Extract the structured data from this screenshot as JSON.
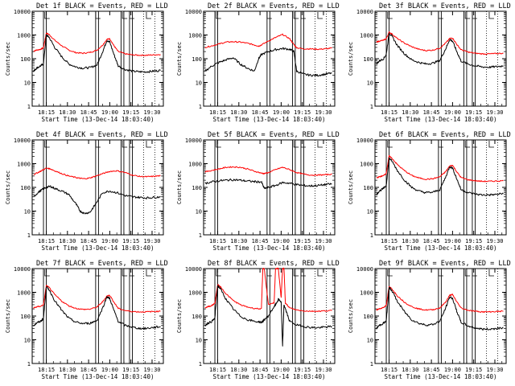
{
  "figure": {
    "start_time_label": "Start Time (13-Dec-14 18:03:40)",
    "ylabel": "Counts/sec",
    "ytick_labels": [
      "1",
      "10",
      "100",
      "1000",
      "10000"
    ],
    "xtick_labels": [
      "18:15",
      "18:30",
      "18:45",
      "19:00",
      "19:15",
      "19:30"
    ],
    "events_color": "#000000",
    "lld_color": "#ff0000"
  },
  "chart_data": [
    {
      "type": "line",
      "title": "Det 1f BLACK = Events, RED = LLD",
      "xlabel": "Start Time (13-Dec-14 18:03:40)",
      "ylabel": "Counts/sec",
      "ylim": [
        1,
        10000
      ],
      "yscale": "log",
      "x": [
        "18:06",
        "18:08",
        "18:11",
        "18:13",
        "18:15",
        "18:17",
        "18:21",
        "18:26",
        "18:31",
        "18:36",
        "18:41",
        "18:46",
        "18:51",
        "18:55",
        "18:58",
        "19:00",
        "19:03",
        "19:06",
        "19:11",
        "19:16",
        "19:21",
        "19:26",
        "19:31",
        "19:36"
      ],
      "series": [
        {
          "name": "LLD",
          "color": "#ff0000",
          "values": [
            210,
            230,
            250,
            290,
            1200,
            1050,
            600,
            350,
            230,
            180,
            170,
            185,
            230,
            380,
            650,
            700,
            350,
            200,
            160,
            145,
            140,
            140,
            145,
            150
          ]
        },
        {
          "name": "Events",
          "color": "#000000",
          "values": [
            30,
            40,
            50,
            60,
            1000,
            800,
            300,
            120,
            60,
            45,
            40,
            42,
            55,
            200,
            600,
            500,
            150,
            50,
            35,
            30,
            28,
            28,
            30,
            32
          ]
        }
      ]
    },
    {
      "type": "line",
      "title": "Det 2f BLACK = Events, RED = LLD",
      "xlabel": "Start Time (13-Dec-14 18:03:40)",
      "ylabel": "Counts/sec",
      "ylim": [
        1,
        10000
      ],
      "yscale": "log",
      "x": [
        "18:06",
        "18:11",
        "18:16",
        "18:21",
        "18:26",
        "18:31",
        "18:36",
        "18:41",
        "18:44",
        "18:46",
        "18:51",
        "18:56",
        "19:01",
        "19:06",
        "19:09",
        "19:11",
        "19:16",
        "19:21",
        "19:26",
        "19:31",
        "19:36"
      ],
      "series": [
        {
          "name": "LLD",
          "color": "#ff0000",
          "values": [
            300,
            350,
            420,
            500,
            520,
            500,
            450,
            380,
            340,
            380,
            560,
            780,
            1050,
            700,
            400,
            290,
            260,
            260,
            250,
            260,
            280
          ]
        },
        {
          "name": "Events",
          "color": "#000000",
          "values": [
            30,
            50,
            70,
            90,
            110,
            60,
            40,
            30,
            100,
            150,
            200,
            240,
            270,
            250,
            200,
            30,
            22,
            20,
            20,
            22,
            25
          ]
        }
      ]
    },
    {
      "type": "line",
      "title": "Det 3f BLACK = Events, RED = LLD",
      "xlabel": "Start Time (13-Dec-14 18:03:40)",
      "ylabel": "Counts/sec",
      "ylim": [
        1,
        10000
      ],
      "yscale": "log",
      "x": [
        "18:06",
        "18:08",
        "18:11",
        "18:13",
        "18:15",
        "18:17",
        "18:21",
        "18:26",
        "18:31",
        "18:36",
        "18:41",
        "18:46",
        "18:51",
        "18:55",
        "18:58",
        "19:00",
        "19:03",
        "19:06",
        "19:11",
        "19:16",
        "19:21",
        "19:26",
        "19:31",
        "19:36"
      ],
      "series": [
        {
          "name": "LLD",
          "color": "#ff0000",
          "values": [
            500,
            550,
            600,
            700,
            1300,
            1100,
            700,
            450,
            320,
            250,
            220,
            230,
            280,
            450,
            700,
            750,
            400,
            240,
            190,
            170,
            160,
            160,
            165,
            170
          ]
        },
        {
          "name": "Events",
          "color": "#000000",
          "values": [
            60,
            80,
            100,
            150,
            1200,
            900,
            350,
            160,
            90,
            70,
            60,
            65,
            85,
            250,
            650,
            550,
            200,
            80,
            60,
            50,
            45,
            44,
            46,
            50
          ]
        }
      ]
    },
    {
      "type": "line",
      "title": "Det 4f BLACK = Events, RED = LLD",
      "xlabel": "Start Time (13-Dec-14 18:03:40)",
      "ylabel": "Counts/sec",
      "ylim": [
        1,
        10000
      ],
      "yscale": "log",
      "x": [
        "18:06",
        "18:09",
        "18:12",
        "18:15",
        "18:18",
        "18:21",
        "18:26",
        "18:31",
        "18:36",
        "18:39",
        "18:42",
        "18:46",
        "18:50",
        "18:55",
        "19:00",
        "19:05",
        "19:11",
        "19:16",
        "19:21",
        "19:26",
        "19:31",
        "19:36"
      ],
      "series": [
        {
          "name": "LLD",
          "color": "#ff0000",
          "values": [
            350,
            420,
            520,
            650,
            600,
            500,
            380,
            300,
            260,
            240,
            230,
            250,
            300,
            380,
            470,
            500,
            420,
            330,
            290,
            280,
            290,
            310
          ]
        },
        {
          "name": "Events",
          "color": "#000000",
          "values": [
            40,
            60,
            80,
            100,
            110,
            90,
            70,
            50,
            20,
            10,
            8,
            9,
            20,
            60,
            70,
            60,
            45,
            40,
            38,
            36,
            38,
            40
          ]
        }
      ]
    },
    {
      "type": "line",
      "title": "Det 5f BLACK = Events, RED = LLD",
      "xlabel": "Start Time (13-Dec-14 18:03:40)",
      "ylabel": "Counts/sec",
      "ylim": [
        1,
        10000
      ],
      "yscale": "log",
      "x": [
        "18:06",
        "18:11",
        "18:16",
        "18:21",
        "18:26",
        "18:31",
        "18:36",
        "18:41",
        "18:46",
        "18:48",
        "18:51",
        "18:56",
        "19:01",
        "19:06",
        "19:11",
        "19:16",
        "19:21",
        "19:26",
        "19:31",
        "19:36"
      ],
      "series": [
        {
          "name": "LLD",
          "color": "#ff0000",
          "values": [
            450,
            520,
            600,
            700,
            730,
            700,
            600,
            480,
            400,
            380,
            420,
            560,
            700,
            560,
            420,
            360,
            330,
            330,
            340,
            360
          ]
        },
        {
          "name": "Events",
          "color": "#000000",
          "values": [
            150,
            170,
            190,
            200,
            210,
            200,
            185,
            175,
            170,
            90,
            100,
            120,
            160,
            150,
            130,
            120,
            115,
            120,
            130,
            140
          ]
        }
      ]
    },
    {
      "type": "line",
      "title": "Det 6f BLACK = Events, RED = LLD",
      "xlabel": "Start Time (13-Dec-14 18:03:40)",
      "ylabel": "Counts/sec",
      "ylim": [
        1,
        10000
      ],
      "yscale": "log",
      "x": [
        "18:06",
        "18:08",
        "18:11",
        "18:13",
        "18:15",
        "18:17",
        "18:21",
        "18:26",
        "18:31",
        "18:36",
        "18:41",
        "18:46",
        "18:51",
        "18:55",
        "18:58",
        "19:00",
        "19:03",
        "19:06",
        "19:11",
        "19:16",
        "19:21",
        "19:26",
        "19:31",
        "19:36"
      ],
      "series": [
        {
          "name": "LLD",
          "color": "#ff0000",
          "values": [
            250,
            280,
            310,
            400,
            2100,
            1700,
            900,
            500,
            320,
            250,
            220,
            230,
            280,
            450,
            800,
            850,
            450,
            260,
            210,
            190,
            180,
            180,
            185,
            190
          ]
        },
        {
          "name": "Events",
          "color": "#000000",
          "values": [
            50,
            70,
            90,
            120,
            1700,
            1300,
            500,
            200,
            100,
            70,
            60,
            62,
            80,
            260,
            750,
            650,
            230,
            80,
            60,
            52,
            48,
            48,
            50,
            55
          ]
        }
      ]
    },
    {
      "type": "line",
      "title": "Det 7f BLACK = Events, RED = LLD",
      "xlabel": "Start Time (13-Dec-14 18:03:40)",
      "ylabel": "Counts/sec",
      "ylim": [
        1,
        10000
      ],
      "yscale": "log",
      "x": [
        "18:06",
        "18:08",
        "18:11",
        "18:13",
        "18:15",
        "18:17",
        "18:21",
        "18:26",
        "18:31",
        "18:36",
        "18:41",
        "18:46",
        "18:51",
        "18:55",
        "18:58",
        "19:00",
        "19:03",
        "19:06",
        "19:11",
        "19:16",
        "19:21",
        "19:26",
        "19:31",
        "19:36"
      ],
      "series": [
        {
          "name": "LLD",
          "color": "#ff0000",
          "values": [
            220,
            240,
            260,
            300,
            1900,
            1600,
            800,
            420,
            270,
            210,
            190,
            195,
            240,
            400,
            700,
            750,
            380,
            210,
            170,
            155,
            150,
            150,
            155,
            160
          ]
        },
        {
          "name": "Events",
          "color": "#000000",
          "values": [
            40,
            50,
            60,
            80,
            1700,
            1300,
            450,
            170,
            80,
            55,
            48,
            50,
            65,
            220,
            650,
            550,
            170,
            60,
            40,
            34,
            30,
            30,
            33,
            36
          ]
        }
      ]
    },
    {
      "type": "line",
      "title": "Det 8f BLACK = Events, RED = LLD",
      "xlabel": "Start Time (13-Dec-14 18:03:40)",
      "ylabel": "Counts/sec",
      "ylim": [
        1,
        10000
      ],
      "yscale": "log",
      "x": [
        "18:06",
        "18:08",
        "18:11",
        "18:13",
        "18:15",
        "18:17",
        "18:21",
        "18:26",
        "18:31",
        "18:36",
        "18:41",
        "18:46",
        "18:47",
        "18:48",
        "18:51",
        "18:55",
        "18:56",
        "18:58",
        "19:00",
        "19:01",
        "19:02",
        "19:03",
        "19:06",
        "19:11",
        "19:16",
        "19:21",
        "19:26",
        "19:31",
        "19:36"
      ],
      "series": [
        {
          "name": "LLD",
          "color": "#ff0000",
          "values": [
            220,
            250,
            280,
            350,
            2100,
            1700,
            850,
            450,
            300,
            240,
            210,
            200,
            10000,
            10000,
            300,
            350,
            10000,
            10000,
            600,
            10000,
            10000,
            350,
            220,
            180,
            165,
            160,
            160,
            165,
            170
          ]
        },
        {
          "name": "Events",
          "color": "#000000",
          "values": [
            40,
            50,
            60,
            80,
            1900,
            1400,
            500,
            200,
            100,
            70,
            60,
            55,
            60,
            70,
            100,
            250,
            300,
            500,
            400,
            5,
            300,
            200,
            60,
            42,
            36,
            33,
            32,
            34,
            36
          ]
        }
      ]
    },
    {
      "type": "line",
      "title": "Det 9f BLACK = Events, RED = LLD",
      "xlabel": "Start Time (13-Dec-14 18:03:40)",
      "ylabel": "Counts/sec",
      "ylim": [
        1,
        10000
      ],
      "yscale": "log",
      "x": [
        "18:06",
        "18:08",
        "18:11",
        "18:13",
        "18:15",
        "18:17",
        "18:21",
        "18:26",
        "18:31",
        "18:36",
        "18:41",
        "18:46",
        "18:51",
        "18:55",
        "18:58",
        "19:00",
        "19:03",
        "19:06",
        "19:11",
        "19:16",
        "19:21",
        "19:26",
        "19:31",
        "19:36"
      ],
      "series": [
        {
          "name": "LLD",
          "color": "#ff0000",
          "values": [
            180,
            200,
            230,
            280,
            1700,
            1400,
            700,
            380,
            250,
            200,
            180,
            185,
            220,
            380,
            750,
            800,
            400,
            220,
            175,
            160,
            150,
            150,
            155,
            160
          ]
        },
        {
          "name": "Events",
          "color": "#000000",
          "values": [
            30,
            40,
            50,
            60,
            1600,
            1200,
            400,
            150,
            70,
            50,
            42,
            44,
            60,
            210,
            650,
            550,
            160,
            55,
            38,
            32,
            28,
            28,
            30,
            33
          ]
        }
      ]
    }
  ]
}
